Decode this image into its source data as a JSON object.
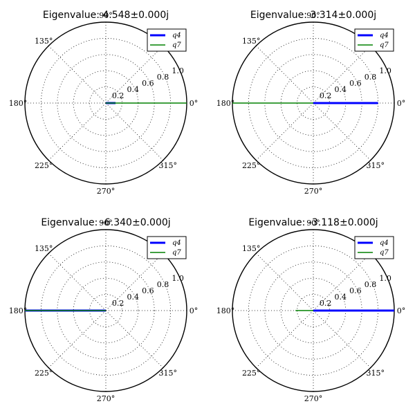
{
  "chart_data": [
    {
      "type": "polar-line",
      "title": "Eigenvalue: 4.548±0.000j",
      "angle_ticks": [
        "0°",
        "45°",
        "90°",
        "135°",
        "180°",
        "225°",
        "270°",
        "315°"
      ],
      "radial_ticks": [
        "0.2",
        "0.4",
        "0.6",
        "0.8",
        "1.0"
      ],
      "rmax": 1.0,
      "grid": true,
      "legend_position": "top-right",
      "series": [
        {
          "name": "q4",
          "color": "#0000ff",
          "angle_deg": 0,
          "magnitude": 0.12
        },
        {
          "name": "q7",
          "color": "#008000",
          "angle_deg": 0,
          "magnitude": 1.0
        }
      ]
    },
    {
      "type": "polar-line",
      "title": "Eigenvalue: 3.314±0.000j",
      "angle_ticks": [
        "0°",
        "45°",
        "90°",
        "135°",
        "180°",
        "225°",
        "270°",
        "315°"
      ],
      "radial_ticks": [
        "0.2",
        "0.4",
        "0.6",
        "0.8",
        "1.0"
      ],
      "rmax": 1.0,
      "grid": true,
      "legend_position": "top-right",
      "series": [
        {
          "name": "q4",
          "color": "#0000ff",
          "angle_deg": 0,
          "magnitude": 0.8
        },
        {
          "name": "q7",
          "color": "#008000",
          "angle_deg": 180,
          "magnitude": 1.0
        }
      ]
    },
    {
      "type": "polar-line",
      "title": "Eigenvalue: -6.340±0.000j",
      "angle_ticks": [
        "0°",
        "45°",
        "90°",
        "135°",
        "180°",
        "225°",
        "270°",
        "315°"
      ],
      "radial_ticks": [
        "0.2",
        "0.4",
        "0.6",
        "0.8",
        "1.0"
      ],
      "rmax": 1.0,
      "grid": true,
      "legend_position": "top-right",
      "series": [
        {
          "name": "q4",
          "color": "#0000ff",
          "angle_deg": 180,
          "magnitude": 1.0
        },
        {
          "name": "q7",
          "color": "#008000",
          "angle_deg": 180,
          "magnitude": 1.0
        }
      ]
    },
    {
      "type": "polar-line",
      "title": "Eigenvalue: -3.118±0.000j",
      "angle_ticks": [
        "0°",
        "45°",
        "90°",
        "135°",
        "180°",
        "225°",
        "270°",
        "315°"
      ],
      "radial_ticks": [
        "0.2",
        "0.4",
        "0.6",
        "0.8",
        "1.0"
      ],
      "rmax": 1.0,
      "grid": true,
      "legend_position": "top-right",
      "series": [
        {
          "name": "q4",
          "color": "#0000ff",
          "angle_deg": 0,
          "magnitude": 1.0
        },
        {
          "name": "q7",
          "color": "#008000",
          "angle_deg": 180,
          "magnitude": 0.22
        }
      ]
    }
  ]
}
